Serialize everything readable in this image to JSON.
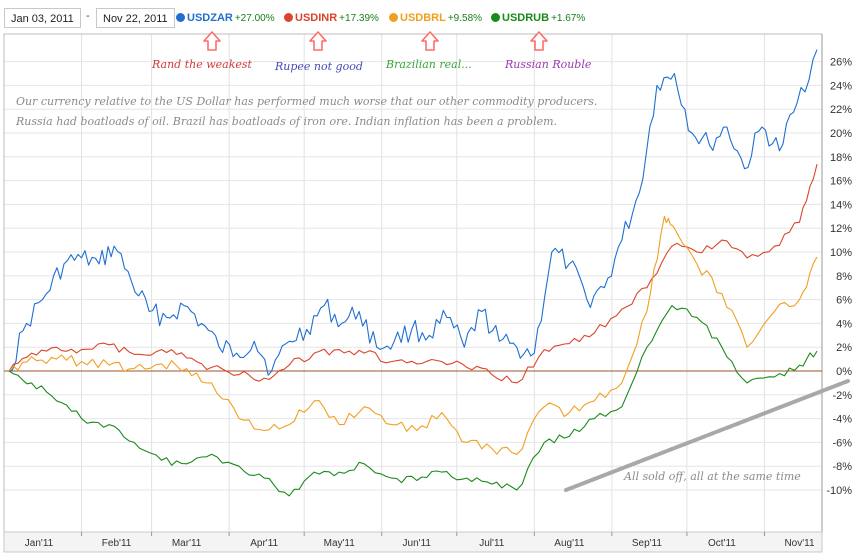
{
  "date_range": {
    "start": "Jan 03, 2011",
    "separator": "-",
    "end": "Nov 22, 2011"
  },
  "legend": [
    {
      "name": "USDZAR",
      "change": "+27.00%",
      "color": "#1f6fd1"
    },
    {
      "name": "USDINR",
      "change": "+17.39%",
      "color": "#d9452b"
    },
    {
      "name": "USDBRL",
      "change": "+9.58%",
      "color": "#f0a020"
    },
    {
      "name": "USDRUB",
      "change": "+1.67%",
      "color": "#1a8a1a"
    }
  ],
  "annotations": [
    {
      "text": "Rand the weakest",
      "color": "#d23a3a"
    },
    {
      "text": "Rupee not good",
      "color": "#4a4ab8"
    },
    {
      "text": "Brazilian real...",
      "color": "#3aa63a"
    },
    {
      "text": "Russian Rouble",
      "color": "#9a3ab0"
    }
  ],
  "note": [
    "Our currency relative to the US Dollar has performed much worse that our other commodity producers.",
    "Russia had boatloads of oil. Brazil has boatloads of iron ore. Indian inflation has been a problem."
  ],
  "trend_note": "All sold off, all at the same time",
  "chart_data": {
    "type": "line",
    "title": "",
    "xlabel": "",
    "ylabel": "",
    "y_unit": "%",
    "ylim": [
      -12,
      27
    ],
    "yticks": [
      "26%",
      "24%",
      "22%",
      "20%",
      "18%",
      "16%",
      "14%",
      "12%",
      "10%",
      "8%",
      "6%",
      "4%",
      "2%",
      "0%",
      "-2%",
      "-4%",
      "-6%",
      "-8%",
      "-10%"
    ],
    "ytick_values": [
      26,
      24,
      22,
      20,
      18,
      16,
      14,
      12,
      10,
      8,
      6,
      4,
      2,
      0,
      -2,
      -4,
      -6,
      -8,
      -10
    ],
    "grid": true,
    "x_range": [
      "2011-01-01",
      "2011-11-24"
    ],
    "xticks": [
      {
        "label": "Jan'11",
        "date": "2011-01-15"
      },
      {
        "label": "Feb'11",
        "date": "2011-02-15"
      },
      {
        "label": "Mar'11",
        "date": "2011-03-15"
      },
      {
        "label": "Apr'11",
        "date": "2011-04-15"
      },
      {
        "label": "May'11",
        "date": "2011-05-15"
      },
      {
        "label": "Jun'11",
        "date": "2011-06-15"
      },
      {
        "label": "Jul'11",
        "date": "2011-07-15"
      },
      {
        "label": "Aug'11",
        "date": "2011-08-15"
      },
      {
        "label": "Sep'11",
        "date": "2011-09-15"
      },
      {
        "label": "Oct'11",
        "date": "2011-10-15"
      },
      {
        "label": "Nov'11",
        "date": "2011-11-15"
      }
    ],
    "series": [
      {
        "name": "USDZAR",
        "color": "#1f6fd1",
        "points": [
          [
            "2011-01-03",
            0
          ],
          [
            "2011-01-10",
            4
          ],
          [
            "2011-01-18",
            6.5
          ],
          [
            "2011-01-25",
            9
          ],
          [
            "2011-02-01",
            9.5
          ],
          [
            "2011-02-08",
            9
          ],
          [
            "2011-02-14",
            10.5
          ],
          [
            "2011-02-21",
            7.5
          ],
          [
            "2011-02-28",
            5
          ],
          [
            "2011-03-07",
            4.5
          ],
          [
            "2011-03-14",
            5.5
          ],
          [
            "2011-03-21",
            4
          ],
          [
            "2011-03-28",
            2
          ],
          [
            "2011-04-04",
            1.5
          ],
          [
            "2011-04-11",
            2.5
          ],
          [
            "2011-04-18",
            0
          ],
          [
            "2011-04-25",
            2.5
          ],
          [
            "2011-05-02",
            3.5
          ],
          [
            "2011-05-09",
            5.5
          ],
          [
            "2011-05-16",
            4
          ],
          [
            "2011-05-23",
            5
          ],
          [
            "2011-05-30",
            2
          ],
          [
            "2011-06-06",
            2.5
          ],
          [
            "2011-06-13",
            3.5
          ],
          [
            "2011-06-20",
            3
          ],
          [
            "2011-06-27",
            4.5
          ],
          [
            "2011-07-04",
            2
          ],
          [
            "2011-07-11",
            5
          ],
          [
            "2011-07-18",
            2.5
          ],
          [
            "2011-07-25",
            2
          ],
          [
            "2011-08-01",
            1.5
          ],
          [
            "2011-08-08",
            10
          ],
          [
            "2011-08-15",
            9
          ],
          [
            "2011-08-22",
            6
          ],
          [
            "2011-08-29",
            7
          ],
          [
            "2011-09-05",
            11
          ],
          [
            "2011-09-12",
            15
          ],
          [
            "2011-09-19",
            24
          ],
          [
            "2011-09-26",
            25
          ],
          [
            "2011-10-03",
            20
          ],
          [
            "2011-10-10",
            19
          ],
          [
            "2011-10-17",
            20.5
          ],
          [
            "2011-10-24",
            17
          ],
          [
            "2011-10-31",
            20.5
          ],
          [
            "2011-11-07",
            18.5
          ],
          [
            "2011-11-14",
            22.5
          ],
          [
            "2011-11-22",
            27
          ]
        ]
      },
      {
        "name": "USDINR",
        "color": "#d9452b",
        "points": [
          [
            "2011-01-03",
            0
          ],
          [
            "2011-01-12",
            1.5
          ],
          [
            "2011-01-22",
            2
          ],
          [
            "2011-02-01",
            1.8
          ],
          [
            "2011-02-12",
            2.2
          ],
          [
            "2011-02-22",
            1.4
          ],
          [
            "2011-03-05",
            1.8
          ],
          [
            "2011-03-15",
            1.1
          ],
          [
            "2011-03-25",
            0.3
          ],
          [
            "2011-04-05",
            -0.3
          ],
          [
            "2011-04-15",
            -0.6
          ],
          [
            "2011-04-25",
            0.5
          ],
          [
            "2011-05-05",
            1.5
          ],
          [
            "2011-05-15",
            1.8
          ],
          [
            "2011-05-25",
            1.5
          ],
          [
            "2011-06-05",
            0.8
          ],
          [
            "2011-06-15",
            0.6
          ],
          [
            "2011-06-25",
            0.8
          ],
          [
            "2011-07-05",
            0.3
          ],
          [
            "2011-07-15",
            -0.3
          ],
          [
            "2011-07-25",
            -1
          ],
          [
            "2011-08-05",
            1.8
          ],
          [
            "2011-08-15",
            2.3
          ],
          [
            "2011-08-25",
            3.2
          ],
          [
            "2011-09-05",
            5.2
          ],
          [
            "2011-09-15",
            7
          ],
          [
            "2011-09-25",
            10.5
          ],
          [
            "2011-10-05",
            10
          ],
          [
            "2011-10-15",
            11
          ],
          [
            "2011-10-25",
            9.5
          ],
          [
            "2011-11-05",
            10.5
          ],
          [
            "2011-11-15",
            12.5
          ],
          [
            "2011-11-22",
            17.39
          ]
        ]
      },
      {
        "name": "USDBRL",
        "color": "#f0a020",
        "points": [
          [
            "2011-01-03",
            0
          ],
          [
            "2011-01-12",
            1.2
          ],
          [
            "2011-01-22",
            1
          ],
          [
            "2011-02-01",
            0.8
          ],
          [
            "2011-02-12",
            0.5
          ],
          [
            "2011-02-22",
            0.2
          ],
          [
            "2011-03-05",
            0.6
          ],
          [
            "2011-03-15",
            0.2
          ],
          [
            "2011-03-25",
            -1
          ],
          [
            "2011-04-05",
            -4
          ],
          [
            "2011-04-15",
            -5
          ],
          [
            "2011-04-25",
            -4.5
          ],
          [
            "2011-05-05",
            -2.5
          ],
          [
            "2011-05-15",
            -4.5
          ],
          [
            "2011-05-25",
            -3
          ],
          [
            "2011-06-05",
            -4.5
          ],
          [
            "2011-06-15",
            -5
          ],
          [
            "2011-06-25",
            -3.5
          ],
          [
            "2011-07-05",
            -6
          ],
          [
            "2011-07-15",
            -6.5
          ],
          [
            "2011-07-25",
            -7
          ],
          [
            "2011-08-05",
            -3
          ],
          [
            "2011-08-15",
            -3.5
          ],
          [
            "2011-08-25",
            -2.5
          ],
          [
            "2011-09-05",
            -1
          ],
          [
            "2011-09-15",
            5
          ],
          [
            "2011-09-22",
            13
          ],
          [
            "2011-09-26",
            12
          ],
          [
            "2011-10-05",
            9
          ],
          [
            "2011-10-15",
            6.5
          ],
          [
            "2011-10-25",
            2
          ],
          [
            "2011-11-05",
            5
          ],
          [
            "2011-11-15",
            6
          ],
          [
            "2011-11-22",
            9.58
          ]
        ]
      },
      {
        "name": "USDRUB",
        "color": "#1a8a1a",
        "points": [
          [
            "2011-01-03",
            0
          ],
          [
            "2011-01-12",
            -1
          ],
          [
            "2011-01-22",
            -2.5
          ],
          [
            "2011-02-01",
            -4
          ],
          [
            "2011-02-12",
            -4.5
          ],
          [
            "2011-02-22",
            -6
          ],
          [
            "2011-03-05",
            -7.5
          ],
          [
            "2011-03-15",
            -7.8
          ],
          [
            "2011-03-25",
            -7
          ],
          [
            "2011-04-05",
            -8
          ],
          [
            "2011-04-15",
            -9
          ],
          [
            "2011-04-25",
            -10.5
          ],
          [
            "2011-05-05",
            -8.5
          ],
          [
            "2011-05-15",
            -8.5
          ],
          [
            "2011-05-25",
            -7.8
          ],
          [
            "2011-06-05",
            -9
          ],
          [
            "2011-06-15",
            -9.2
          ],
          [
            "2011-06-25",
            -8.5
          ],
          [
            "2011-07-05",
            -9
          ],
          [
            "2011-07-15",
            -9.5
          ],
          [
            "2011-07-25",
            -10
          ],
          [
            "2011-08-05",
            -6
          ],
          [
            "2011-08-15",
            -5.5
          ],
          [
            "2011-08-25",
            -4
          ],
          [
            "2011-09-05",
            -3
          ],
          [
            "2011-09-15",
            2
          ],
          [
            "2011-09-25",
            5.5
          ],
          [
            "2011-10-05",
            4.5
          ],
          [
            "2011-10-15",
            2
          ],
          [
            "2011-10-25",
            -1
          ],
          [
            "2011-11-05",
            -0.5
          ],
          [
            "2011-11-15",
            0.5
          ],
          [
            "2011-11-22",
            1.67
          ]
        ]
      }
    ]
  }
}
